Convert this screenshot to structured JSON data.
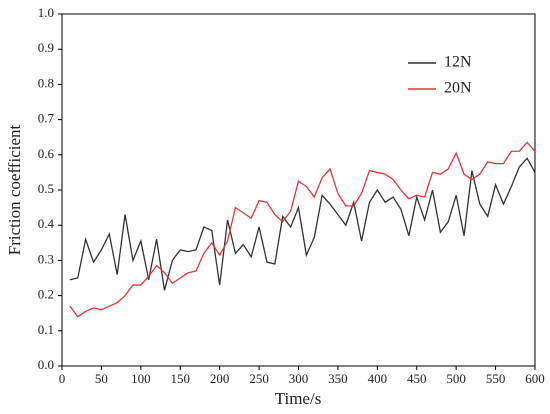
{
  "chart_data": {
    "type": "line",
    "x_label": "Time/s",
    "y_label": "Friction coefficient",
    "x": [
      10,
      20,
      30,
      40,
      50,
      60,
      70,
      80,
      90,
      100,
      110,
      120,
      130,
      140,
      150,
      160,
      170,
      180,
      190,
      200,
      210,
      220,
      230,
      240,
      250,
      260,
      270,
      280,
      290,
      300,
      310,
      320,
      330,
      340,
      350,
      360,
      370,
      380,
      390,
      400,
      410,
      420,
      430,
      440,
      450,
      460,
      470,
      480,
      490,
      500,
      510,
      520,
      530,
      540,
      550,
      560,
      570,
      580,
      590,
      600
    ],
    "series": [
      {
        "name": "12N",
        "color": "#333333",
        "values": [
          0.245,
          0.25,
          0.36,
          0.295,
          0.33,
          0.375,
          0.26,
          0.43,
          0.3,
          0.355,
          0.245,
          0.36,
          0.215,
          0.3,
          0.33,
          0.325,
          0.33,
          0.395,
          0.385,
          0.23,
          0.415,
          0.32,
          0.345,
          0.31,
          0.395,
          0.295,
          0.29,
          0.425,
          0.395,
          0.45,
          0.315,
          0.365,
          0.485,
          0.46,
          0.43,
          0.4,
          0.465,
          0.355,
          0.465,
          0.5,
          0.465,
          0.48,
          0.445,
          0.37,
          0.48,
          0.415,
          0.5,
          0.38,
          0.41,
          0.485,
          0.37,
          0.555,
          0.46,
          0.425,
          0.515,
          0.46,
          0.51,
          0.565,
          0.59,
          0.55
        ]
      },
      {
        "name": "20N",
        "color": "#e8353a",
        "values": [
          0.17,
          0.14,
          0.155,
          0.165,
          0.16,
          0.17,
          0.18,
          0.2,
          0.23,
          0.23,
          0.255,
          0.285,
          0.265,
          0.235,
          0.25,
          0.265,
          0.27,
          0.32,
          0.35,
          0.315,
          0.355,
          0.45,
          0.435,
          0.42,
          0.47,
          0.465,
          0.43,
          0.41,
          0.44,
          0.525,
          0.51,
          0.48,
          0.535,
          0.56,
          0.49,
          0.455,
          0.455,
          0.49,
          0.555,
          0.55,
          0.545,
          0.53,
          0.5,
          0.475,
          0.485,
          0.48,
          0.55,
          0.545,
          0.56,
          0.605,
          0.545,
          0.53,
          0.545,
          0.58,
          0.575,
          0.575,
          0.61,
          0.61,
          0.635,
          0.61
        ]
      }
    ],
    "xlim": [
      0,
      600
    ],
    "xticks": [
      0,
      50,
      100,
      150,
      200,
      250,
      300,
      350,
      400,
      450,
      500,
      550,
      600
    ],
    "ylim": [
      0,
      1
    ],
    "yticks": [
      {
        "value": 0,
        "label": "0.0"
      },
      0.1,
      0.2,
      0.3,
      0.4,
      0.5,
      0.6,
      0.7,
      0.8,
      0.9,
      {
        "value": 1,
        "label": "1.0"
      }
    ],
    "legend": "upper right"
  }
}
